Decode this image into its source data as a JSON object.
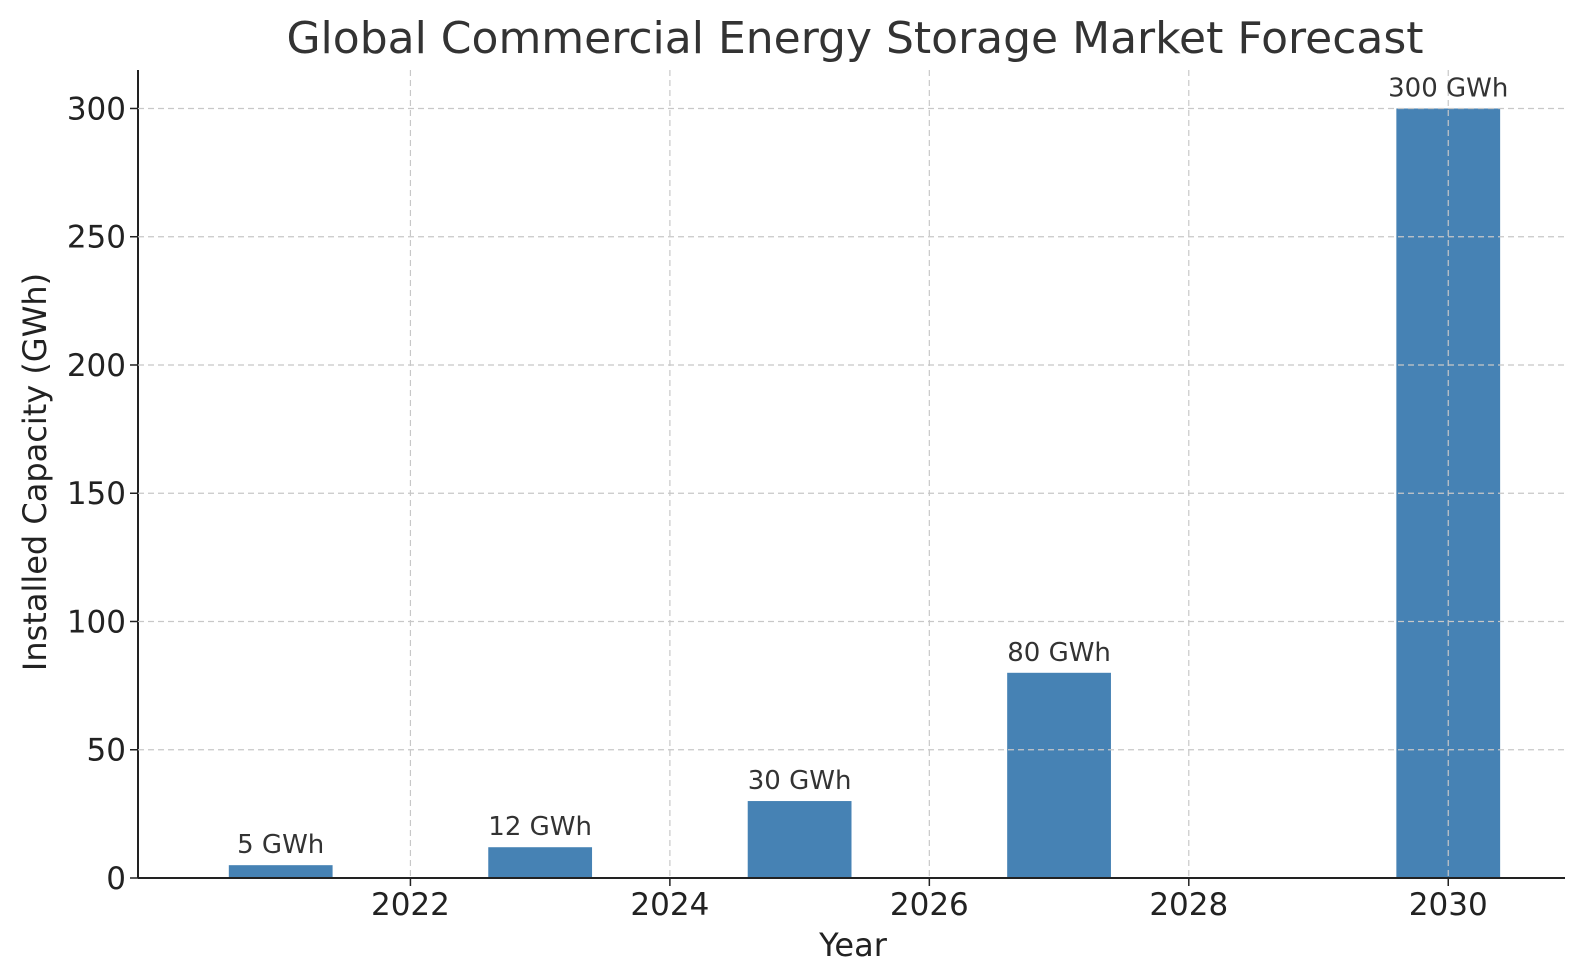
{
  "chart_data": {
    "type": "bar",
    "title": "Global Commercial Energy Storage Market Forecast",
    "xlabel": "Year",
    "ylabel": "Installed Capacity (GWh)",
    "x": [
      2021,
      2023,
      2025,
      2027,
      2030
    ],
    "values": [
      5,
      12,
      30,
      80,
      300
    ],
    "data_labels": [
      "5 GWh",
      "12 GWh",
      "30 GWh",
      "80 GWh",
      "300 GWh"
    ],
    "xlim": [
      2019.9,
      2030.9
    ],
    "ylim": [
      0,
      315
    ],
    "x_ticks": [
      2022,
      2024,
      2026,
      2028,
      2030
    ],
    "x_tick_labels": [
      "2022",
      "2024",
      "2026",
      "2028",
      "2030"
    ],
    "y_ticks": [
      0,
      50,
      100,
      150,
      200,
      250,
      300
    ],
    "y_tick_labels": [
      "0",
      "50",
      "100",
      "150",
      "200",
      "250",
      "300"
    ],
    "bar_width_years": 0.8,
    "bar_color": "#4682b4",
    "grid": true
  }
}
